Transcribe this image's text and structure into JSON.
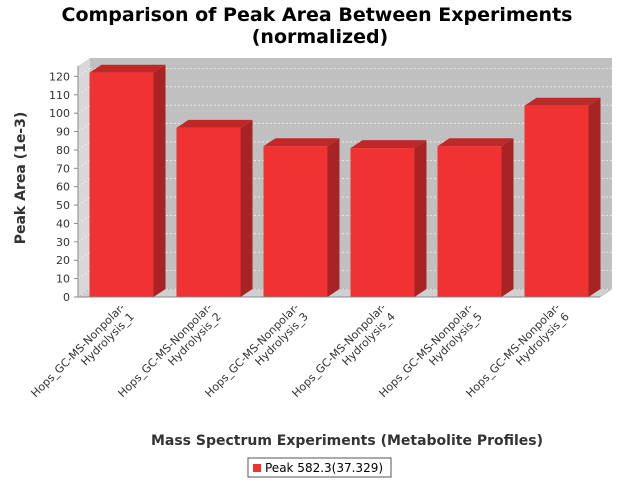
{
  "chart_data": {
    "type": "bar",
    "title_line1": "Comparison of Peak Area Between Experiments",
    "title_line2": "(normalized)",
    "xlabel": "Mass Spectrum Experiments (Metabolite Profiles)",
    "ylabel": "Peak Area (1e-3)",
    "categories": [
      [
        "Hops_GC-MS-Nonpolar-",
        "Hydrolysis_1"
      ],
      [
        "Hops_GC-MS-Nonpolar-",
        "Hydrolysis_2"
      ],
      [
        "Hops_GC-MS-Nonpolar-",
        "Hydrolysis_3"
      ],
      [
        "Hops_GC-MS-Nonpolar-",
        "Hydrolysis_4"
      ],
      [
        "Hops_GC-MS-Nonpolar-",
        "Hydrolysis_5"
      ],
      [
        "Hops_GC-MS-Nonpolar-",
        "Hydrolysis_6"
      ]
    ],
    "series": [
      {
        "name": "Peak 582.3(37.329)",
        "values": [
          122,
          92,
          82,
          81,
          82,
          104
        ]
      }
    ],
    "ylim": [
      0,
      130
    ],
    "yticks": [
      0,
      10,
      20,
      30,
      40,
      50,
      60,
      70,
      80,
      90,
      100,
      110,
      120
    ],
    "grid": true,
    "legend_position": "bottom",
    "colors": {
      "bar_front": "#f03232",
      "bar_top": "#c02828",
      "bar_side": "#a82424",
      "plot_bg": "#c0c0c0",
      "plot_side": "#d8d8d8",
      "plot_floor": "#d0d0d0",
      "grid": "#ffffff",
      "axis": "#888888"
    }
  }
}
